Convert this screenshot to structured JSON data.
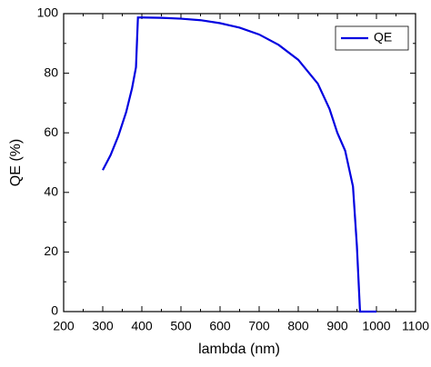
{
  "chart_data": {
    "type": "line",
    "x_label": "lambda (nm)",
    "y_label": "QE (%)",
    "x": [
      300,
      320,
      340,
      360,
      375,
      385,
      390,
      400,
      450,
      500,
      550,
      600,
      650,
      700,
      750,
      800,
      850,
      880,
      900,
      920,
      930,
      940,
      950,
      958,
      1000
    ],
    "series": [
      {
        "name": "QE",
        "color": "#0000e0",
        "values": [
          47.5,
          52.5,
          59,
          67,
          75,
          82,
          98.7,
          98.7,
          98.6,
          98.3,
          97.8,
          96.8,
          95.3,
          93,
          89.5,
          84.5,
          76.5,
          68,
          60,
          54,
          48,
          42,
          22,
          0,
          0
        ]
      }
    ],
    "xlim": [
      200,
      1100
    ],
    "xticks": [
      200,
      300,
      400,
      500,
      600,
      700,
      800,
      900,
      1000,
      1100
    ],
    "ylim": [
      0,
      100
    ],
    "yticks": [
      0,
      20,
      40,
      60,
      80,
      100
    ],
    "legend": "upper right"
  }
}
